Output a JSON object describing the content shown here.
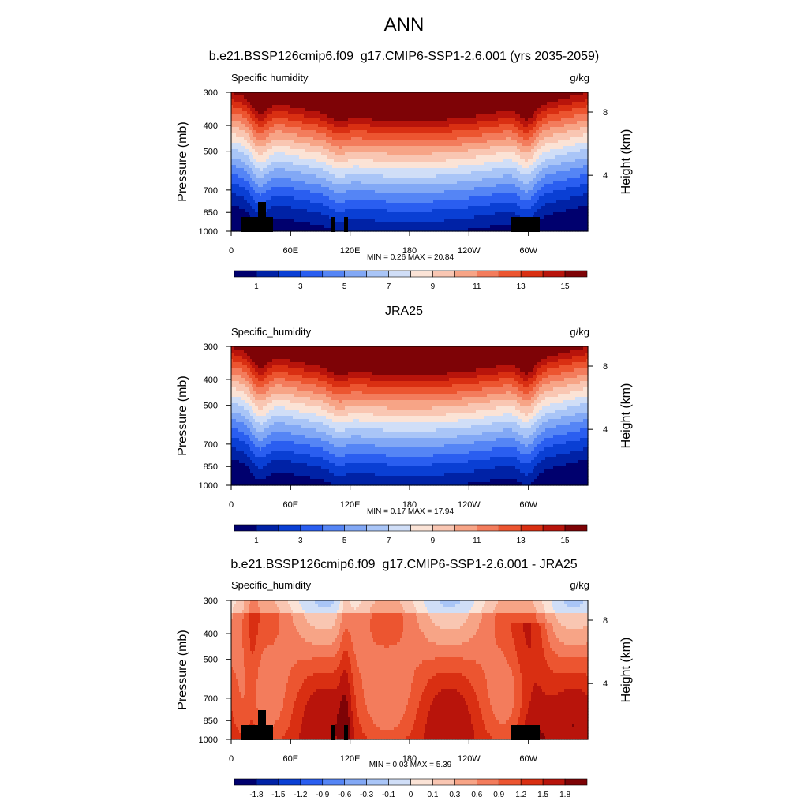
{
  "figure": {
    "title": "ANN"
  },
  "chart_data": [
    {
      "type": "heatmap",
      "title": "b.e21.BSSP126cmip6.f09_g17.CMIP6-SSP1-2.6.001 (yrs 2035-2059)",
      "left_label": "Specific humidity",
      "units": "g/kg",
      "ylabel": "Pressure (mb)",
      "ylabel_right": "Height (km)",
      "x_ticks": [
        "0",
        "60E",
        "120E",
        "180",
        "120W",
        "60W"
      ],
      "y_ticks": [
        "300",
        "400",
        "500",
        "700",
        "850",
        "1000"
      ],
      "y_right_ticks": [
        "8",
        "4"
      ],
      "min_max_text": "MIN =   0.26  MAX =  20.84",
      "min": 0.26,
      "max": 20.84,
      "colorbar_labels": [
        "1",
        "3",
        "5",
        "7",
        "9",
        "11",
        "13",
        "15"
      ],
      "colorbar_levels": [
        0,
        1,
        2,
        3,
        4,
        5,
        6,
        7,
        8,
        9,
        10,
        11,
        12,
        13,
        14,
        15,
        16
      ]
    },
    {
      "type": "heatmap",
      "title": "JRA25",
      "left_label": "Specific_humidity",
      "units": "g/kg",
      "ylabel": "Pressure (mb)",
      "ylabel_right": "Height (km)",
      "x_ticks": [
        "0",
        "60E",
        "120E",
        "180",
        "120W",
        "60W"
      ],
      "y_ticks": [
        "300",
        "400",
        "500",
        "700",
        "850",
        "1000"
      ],
      "y_right_ticks": [
        "8",
        "4"
      ],
      "min_max_text": "MIN =   0.17  MAX =  17.94",
      "min": 0.17,
      "max": 17.94,
      "colorbar_labels": [
        "1",
        "3",
        "5",
        "7",
        "9",
        "11",
        "13",
        "15"
      ],
      "colorbar_levels": [
        0,
        1,
        2,
        3,
        4,
        5,
        6,
        7,
        8,
        9,
        10,
        11,
        12,
        13,
        14,
        15,
        16
      ]
    },
    {
      "type": "heatmap",
      "title": "b.e21.BSSP126cmip6.f09_g17.CMIP6-SSP1-2.6.001 - JRA25",
      "left_label": "Specific_humidity",
      "units": "g/kg",
      "ylabel": "Pressure (mb)",
      "ylabel_right": "Height (km)",
      "x_ticks": [
        "0",
        "60E",
        "120E",
        "180",
        "120W",
        "60W"
      ],
      "y_ticks": [
        "300",
        "400",
        "500",
        "700",
        "850",
        "1000"
      ],
      "y_right_ticks": [
        "8",
        "4"
      ],
      "min_max_text": "MIN =   0.03  MAX =   5.39",
      "min": 0.03,
      "max": 5.39,
      "colorbar_labels": [
        "-1.8",
        "-1.5",
        "-1.2",
        "-0.9",
        "-0.6",
        "-0.3",
        "-0.1",
        "0",
        "0.1",
        "0.3",
        "0.6",
        "0.9",
        "1.2",
        "1.5",
        "1.8"
      ],
      "colorbar_levels": [
        -2.1,
        -1.8,
        -1.5,
        -1.2,
        -0.9,
        -0.6,
        -0.3,
        -0.1,
        0,
        0.1,
        0.3,
        0.6,
        0.9,
        1.2,
        1.5,
        1.8,
        2.1
      ]
    }
  ],
  "colors": {
    "palette": [
      "#00006e",
      "#0022a6",
      "#0a3fd4",
      "#2a5ef0",
      "#5585f5",
      "#82a8f5",
      "#a9c5f7",
      "#d0def7",
      "#fbe3d6",
      "#f9c6b2",
      "#f7a486",
      "#f37c5c",
      "#ec5530",
      "#d92f12",
      "#b8140b",
      "#7e0306"
    ],
    "land": "#000000"
  }
}
